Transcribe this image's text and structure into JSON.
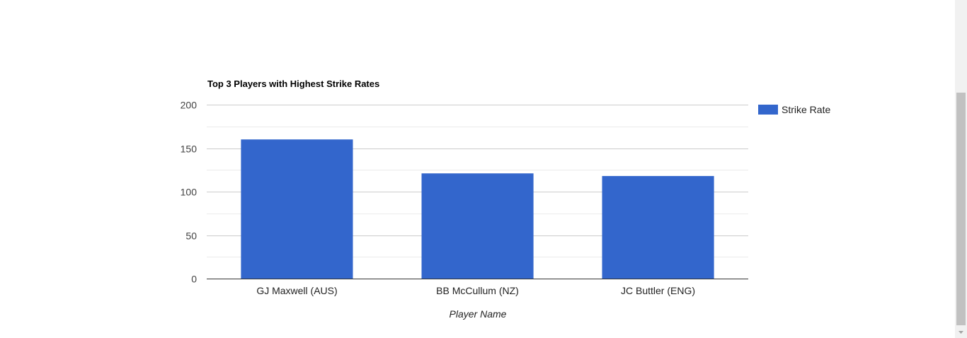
{
  "chart_data": {
    "type": "bar",
    "title": "Top 3 Players with Highest Strike Rates",
    "xlabel": "Player Name",
    "ylabel": "",
    "categories": [
      "GJ Maxwell (AUS)",
      "BB McCullum (NZ)",
      "JC Buttler (ENG)"
    ],
    "series": [
      {
        "name": "Strike Rate",
        "values": [
          160,
          121,
          118
        ],
        "color": "#3366cc"
      }
    ],
    "ylim": [
      0,
      200
    ],
    "yticks": [
      0,
      50,
      100,
      150,
      200
    ],
    "ytick_labels": [
      "0",
      "50",
      "100",
      "150",
      "200"
    ],
    "grid": true,
    "legend": "right"
  },
  "scrollbar": {
    "icon": "chevron-down-icon"
  }
}
